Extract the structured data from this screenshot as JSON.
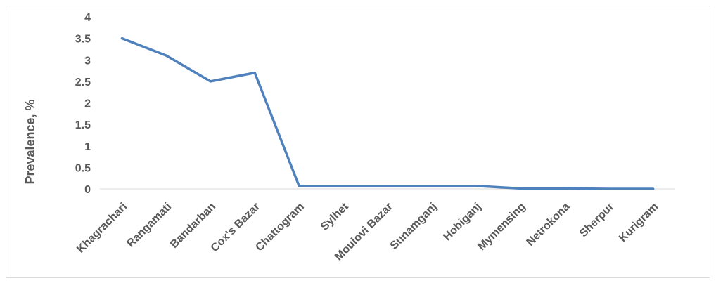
{
  "chart_data": {
    "type": "line",
    "title": "",
    "xlabel": "",
    "ylabel": "Prevalence, %",
    "ylim": [
      0,
      4
    ],
    "yticks": [
      "0",
      "0.5",
      "1",
      "1.5",
      "2",
      "2.5",
      "3",
      "3.5",
      "4"
    ],
    "grid": false,
    "categories": [
      "Khagrachari",
      "Rangamati",
      "Bandarban",
      "Cox's Bazar",
      "Chattogram",
      "Sylhet",
      "Moulovi Bazar",
      "Sunamganj",
      "Hobiganj",
      "Mymensing",
      "Netrokona",
      "Sherpur",
      "Kurigram"
    ],
    "series": [
      {
        "values": [
          3.5,
          3.1,
          2.5,
          2.7,
          0.07,
          0.07,
          0.07,
          0.07,
          0.07,
          0.01,
          0.01,
          0.0,
          0.0
        ],
        "color": "#4f81bd"
      }
    ]
  }
}
